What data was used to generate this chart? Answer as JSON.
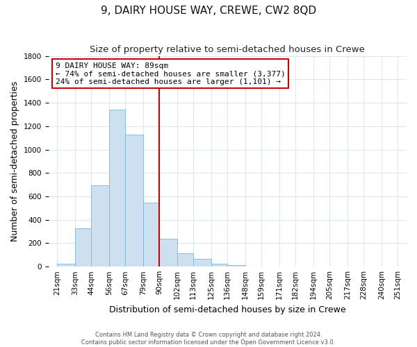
{
  "title": "9, DAIRY HOUSE WAY, CREWE, CW2 8QD",
  "subtitle": "Size of property relative to semi-detached houses in Crewe",
  "xlabel": "Distribution of semi-detached houses by size in Crewe",
  "ylabel": "Number of semi-detached properties",
  "bar_color": "#cce0f0",
  "bar_edge_color": "#7ab8d8",
  "vline_x": 90,
  "vline_color": "#cc0000",
  "categories": [
    "21sqm",
    "33sqm",
    "44sqm",
    "56sqm",
    "67sqm",
    "79sqm",
    "90sqm",
    "102sqm",
    "113sqm",
    "125sqm",
    "136sqm",
    "148sqm",
    "159sqm",
    "171sqm",
    "182sqm",
    "194sqm",
    "205sqm",
    "217sqm",
    "228sqm",
    "240sqm",
    "251sqm"
  ],
  "bin_edges": [
    21,
    33,
    44,
    56,
    67,
    79,
    90,
    102,
    113,
    125,
    136,
    148,
    159,
    171,
    182,
    194,
    205,
    217,
    228,
    240,
    251
  ],
  "values": [
    22,
    330,
    695,
    1340,
    1130,
    545,
    240,
    115,
    68,
    25,
    15,
    0,
    0,
    0,
    0,
    0,
    0,
    0,
    0,
    0
  ],
  "ylim": [
    0,
    1800
  ],
  "yticks": [
    0,
    200,
    400,
    600,
    800,
    1000,
    1200,
    1400,
    1600,
    1800
  ],
  "annotation_title": "9 DAIRY HOUSE WAY: 89sqm",
  "annotation_line1": "← 74% of semi-detached houses are smaller (3,377)",
  "annotation_line2": "24% of semi-detached houses are larger (1,101) →",
  "annotation_box_color": "#ffffff",
  "annotation_box_edge": "#cc0000",
  "footer_line1": "Contains HM Land Registry data © Crown copyright and database right 2024.",
  "footer_line2": "Contains public sector information licensed under the Open Government Licence v3.0.",
  "bg_color": "#ffffff",
  "grid_color": "#dce8f0",
  "title_fontsize": 11,
  "subtitle_fontsize": 9.5,
  "axis_label_fontsize": 9,
  "tick_fontsize": 7.5,
  "annotation_fontsize": 8
}
